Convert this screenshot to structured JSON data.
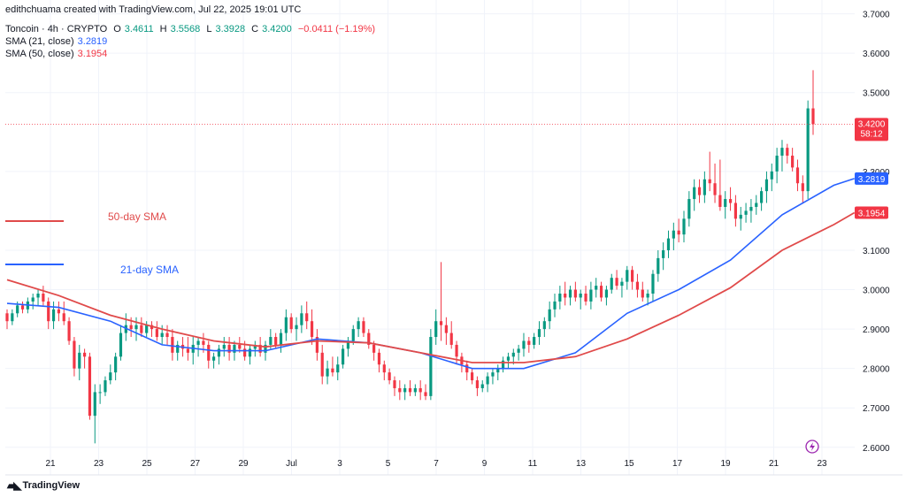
{
  "header": {
    "creator_line": "edithchuama created with TradingView.com, Jul 22, 2025 19:01 UTC",
    "symbol": "Toncoin · 4h · CRYPTO",
    "o_label": "O",
    "o_value": "3.4611",
    "h_label": "H",
    "h_value": "3.5568",
    "l_label": "L",
    "l_value": "3.3928",
    "c_label": "C",
    "c_value": "3.4200",
    "change": "−0.0411 (−1.19%)",
    "sma21_label": "SMA (21, close)",
    "sma21_value": "3.2819",
    "sma50_label": "SMA (50, close)",
    "sma50_value": "3.1954"
  },
  "brand": {
    "name": "TradingView"
  },
  "colors": {
    "up": "#089981",
    "down": "#f23645",
    "sma21": "#2962ff",
    "sma50": "#e04a4a",
    "grid": "#f0f3fa",
    "text": "#131722"
  },
  "chart_data": {
    "type": "candlestick",
    "y_ticks": [
      "3.7000",
      "3.6000",
      "3.5000",
      "3.3000",
      "3.1000",
      "3.0000",
      "2.9000",
      "2.8000",
      "2.7000",
      "2.6000"
    ],
    "ylim": [
      2.53,
      3.735
    ],
    "x_ticks": [
      "21",
      "23",
      "25",
      "27",
      "29",
      "Jul",
      "3",
      "5",
      "7",
      "9",
      "11",
      "13",
      "15",
      "17",
      "19",
      "21",
      "23"
    ],
    "last_price_label": {
      "price": "3.4200",
      "countdown": "58:12"
    },
    "sma21_label": "3.2819",
    "sma50_label": "3.1954",
    "annotations": [
      {
        "text": "50-day SMA",
        "color": "#e04a4a"
      },
      {
        "text": "21-day SMA",
        "color": "#2962ff"
      }
    ],
    "candles": [
      [
        2.94,
        2.95,
        2.9,
        2.92
      ],
      [
        2.92,
        2.95,
        2.91,
        2.94
      ],
      [
        2.94,
        2.97,
        2.93,
        2.96
      ],
      [
        2.96,
        2.97,
        2.94,
        2.95
      ],
      [
        2.95,
        2.98,
        2.94,
        2.97
      ],
      [
        2.97,
        2.99,
        2.95,
        2.98
      ],
      [
        2.98,
        3.0,
        2.96,
        2.99
      ],
      [
        2.99,
        3.01,
        2.96,
        2.97
      ],
      [
        2.97,
        2.98,
        2.9,
        2.92
      ],
      [
        2.92,
        2.97,
        2.9,
        2.95
      ],
      [
        2.95,
        2.97,
        2.92,
        2.94
      ],
      [
        2.94,
        2.97,
        2.91,
        2.92
      ],
      [
        2.92,
        2.93,
        2.86,
        2.87
      ],
      [
        2.87,
        2.88,
        2.78,
        2.8
      ],
      [
        2.8,
        2.86,
        2.77,
        2.84
      ],
      [
        2.84,
        2.85,
        2.8,
        2.83
      ],
      [
        2.83,
        2.84,
        2.67,
        2.68
      ],
      [
        2.68,
        2.76,
        2.61,
        2.74
      ],
      [
        2.74,
        2.76,
        2.71,
        2.74
      ],
      [
        2.74,
        2.78,
        2.73,
        2.77
      ],
      [
        2.77,
        2.81,
        2.76,
        2.79
      ],
      [
        2.79,
        2.84,
        2.77,
        2.83
      ],
      [
        2.83,
        2.91,
        2.82,
        2.89
      ],
      [
        2.89,
        2.94,
        2.87,
        2.91
      ],
      [
        2.91,
        2.93,
        2.88,
        2.9
      ],
      [
        2.9,
        2.93,
        2.87,
        2.91
      ],
      [
        2.91,
        2.93,
        2.88,
        2.89
      ],
      [
        2.89,
        2.92,
        2.88,
        2.91
      ],
      [
        2.91,
        2.92,
        2.88,
        2.9
      ],
      [
        2.9,
        2.92,
        2.87,
        2.88
      ],
      [
        2.88,
        2.91,
        2.86,
        2.89
      ],
      [
        2.89,
        2.91,
        2.86,
        2.88
      ],
      [
        2.88,
        2.9,
        2.82,
        2.84
      ],
      [
        2.84,
        2.87,
        2.82,
        2.86
      ],
      [
        2.86,
        2.88,
        2.83,
        2.85
      ],
      [
        2.85,
        2.88,
        2.82,
        2.84
      ],
      [
        2.84,
        2.88,
        2.81,
        2.86
      ],
      [
        2.86,
        2.88,
        2.83,
        2.87
      ],
      [
        2.87,
        2.89,
        2.84,
        2.86
      ],
      [
        2.86,
        2.87,
        2.8,
        2.82
      ],
      [
        2.82,
        2.84,
        2.8,
        2.83
      ],
      [
        2.83,
        2.86,
        2.81,
        2.85
      ],
      [
        2.85,
        2.88,
        2.83,
        2.86
      ],
      [
        2.86,
        2.88,
        2.82,
        2.84
      ],
      [
        2.84,
        2.87,
        2.82,
        2.86
      ],
      [
        2.86,
        2.88,
        2.84,
        2.85
      ],
      [
        2.85,
        2.87,
        2.82,
        2.83
      ],
      [
        2.83,
        2.86,
        2.81,
        2.85
      ],
      [
        2.85,
        2.87,
        2.83,
        2.86
      ],
      [
        2.86,
        2.88,
        2.83,
        2.84
      ],
      [
        2.84,
        2.87,
        2.82,
        2.86
      ],
      [
        2.86,
        2.9,
        2.85,
        2.88
      ],
      [
        2.88,
        2.89,
        2.85,
        2.86
      ],
      [
        2.86,
        2.9,
        2.84,
        2.89
      ],
      [
        2.89,
        2.95,
        2.87,
        2.93
      ],
      [
        2.93,
        2.94,
        2.89,
        2.9
      ],
      [
        2.9,
        2.93,
        2.87,
        2.91
      ],
      [
        2.91,
        2.96,
        2.89,
        2.94
      ],
      [
        2.94,
        2.97,
        2.9,
        2.92
      ],
      [
        2.92,
        2.95,
        2.86,
        2.88
      ],
      [
        2.88,
        2.9,
        2.82,
        2.84
      ],
      [
        2.84,
        2.86,
        2.76,
        2.78
      ],
      [
        2.78,
        2.82,
        2.76,
        2.8
      ],
      [
        2.8,
        2.83,
        2.78,
        2.79
      ],
      [
        2.79,
        2.83,
        2.77,
        2.81
      ],
      [
        2.81,
        2.86,
        2.8,
        2.85
      ],
      [
        2.85,
        2.88,
        2.83,
        2.87
      ],
      [
        2.87,
        2.91,
        2.86,
        2.9
      ],
      [
        2.9,
        2.93,
        2.88,
        2.92
      ],
      [
        2.92,
        2.93,
        2.88,
        2.89
      ],
      [
        2.89,
        2.9,
        2.85,
        2.86
      ],
      [
        2.86,
        2.87,
        2.82,
        2.84
      ],
      [
        2.84,
        2.85,
        2.79,
        2.81
      ],
      [
        2.81,
        2.82,
        2.77,
        2.79
      ],
      [
        2.79,
        2.8,
        2.76,
        2.77
      ],
      [
        2.77,
        2.78,
        2.73,
        2.75
      ],
      [
        2.75,
        2.77,
        2.72,
        2.74
      ],
      [
        2.74,
        2.76,
        2.72,
        2.75
      ],
      [
        2.75,
        2.77,
        2.73,
        2.74
      ],
      [
        2.74,
        2.76,
        2.73,
        2.75
      ],
      [
        2.75,
        2.77,
        2.72,
        2.74
      ],
      [
        2.74,
        2.76,
        2.72,
        2.73
      ],
      [
        2.73,
        2.9,
        2.72,
        2.88
      ],
      [
        2.88,
        2.95,
        2.86,
        2.92
      ],
      [
        2.92,
        3.07,
        2.87,
        2.91
      ],
      [
        2.91,
        2.93,
        2.86,
        2.89
      ],
      [
        2.89,
        2.92,
        2.85,
        2.86
      ],
      [
        2.86,
        2.87,
        2.81,
        2.83
      ],
      [
        2.83,
        2.84,
        2.79,
        2.81
      ],
      [
        2.81,
        2.82,
        2.77,
        2.79
      ],
      [
        2.79,
        2.8,
        2.76,
        2.77
      ],
      [
        2.77,
        2.78,
        2.73,
        2.75
      ],
      [
        2.75,
        2.77,
        2.74,
        2.76
      ],
      [
        2.76,
        2.79,
        2.74,
        2.78
      ],
      [
        2.78,
        2.8,
        2.76,
        2.79
      ],
      [
        2.79,
        2.81,
        2.77,
        2.8
      ],
      [
        2.8,
        2.83,
        2.79,
        2.82
      ],
      [
        2.82,
        2.84,
        2.8,
        2.83
      ],
      [
        2.83,
        2.85,
        2.81,
        2.84
      ],
      [
        2.84,
        2.86,
        2.82,
        2.85
      ],
      [
        2.85,
        2.89,
        2.83,
        2.87
      ],
      [
        2.87,
        2.88,
        2.84,
        2.86
      ],
      [
        2.86,
        2.89,
        2.85,
        2.88
      ],
      [
        2.88,
        2.92,
        2.86,
        2.9
      ],
      [
        2.9,
        2.93,
        2.88,
        2.92
      ],
      [
        2.92,
        2.97,
        2.9,
        2.95
      ],
      [
        2.95,
        2.99,
        2.93,
        2.97
      ],
      [
        2.97,
        3.01,
        2.95,
        2.99
      ],
      [
        2.99,
        3.02,
        2.96,
        2.98
      ],
      [
        2.98,
        3.01,
        2.96,
        3.0
      ],
      [
        3.0,
        3.02,
        2.97,
        2.98
      ],
      [
        2.98,
        3.0,
        2.95,
        2.99
      ],
      [
        2.99,
        3.01,
        2.96,
        2.97
      ],
      [
        2.97,
        3.02,
        2.95,
        3.0
      ],
      [
        3.0,
        3.03,
        2.98,
        3.01
      ],
      [
        3.01,
        3.02,
        2.97,
        2.98
      ],
      [
        2.98,
        3.01,
        2.96,
        3.0
      ],
      [
        3.0,
        3.04,
        2.99,
        3.03
      ],
      [
        3.03,
        3.05,
        3.0,
        3.01
      ],
      [
        3.01,
        3.03,
        2.98,
        3.02
      ],
      [
        3.02,
        3.06,
        3.0,
        3.05
      ],
      [
        3.05,
        3.06,
        3.0,
        3.02
      ],
      [
        3.02,
        3.04,
        2.98,
        3.0
      ],
      [
        3.0,
        3.02,
        2.97,
        2.98
      ],
      [
        2.98,
        3.0,
        2.96,
        2.99
      ],
      [
        2.99,
        3.05,
        2.97,
        3.04
      ],
      [
        3.04,
        3.1,
        3.02,
        3.08
      ],
      [
        3.08,
        3.12,
        3.05,
        3.1
      ],
      [
        3.1,
        3.15,
        3.08,
        3.13
      ],
      [
        3.13,
        3.17,
        3.1,
        3.15
      ],
      [
        3.15,
        3.18,
        3.12,
        3.14
      ],
      [
        3.14,
        3.2,
        3.12,
        3.18
      ],
      [
        3.18,
        3.25,
        3.16,
        3.23
      ],
      [
        3.23,
        3.28,
        3.2,
        3.26
      ],
      [
        3.26,
        3.28,
        3.22,
        3.24
      ],
      [
        3.24,
        3.3,
        3.22,
        3.28
      ],
      [
        3.28,
        3.35,
        3.25,
        3.27
      ],
      [
        3.27,
        3.32,
        3.22,
        3.24
      ],
      [
        3.24,
        3.33,
        3.2,
        3.21
      ],
      [
        3.21,
        3.25,
        3.18,
        3.23
      ],
      [
        3.23,
        3.26,
        3.2,
        3.22
      ],
      [
        3.22,
        3.24,
        3.16,
        3.18
      ],
      [
        3.18,
        3.21,
        3.15,
        3.19
      ],
      [
        3.19,
        3.22,
        3.17,
        3.2
      ],
      [
        3.2,
        3.23,
        3.17,
        3.21
      ],
      [
        3.21,
        3.24,
        3.19,
        3.22
      ],
      [
        3.22,
        3.26,
        3.2,
        3.25
      ],
      [
        3.25,
        3.3,
        3.22,
        3.28
      ],
      [
        3.28,
        3.32,
        3.25,
        3.3
      ],
      [
        3.3,
        3.36,
        3.27,
        3.34
      ],
      [
        3.34,
        3.38,
        3.3,
        3.36
      ],
      [
        3.36,
        3.37,
        3.32,
        3.34
      ],
      [
        3.34,
        3.36,
        3.3,
        3.31
      ],
      [
        3.31,
        3.33,
        3.25,
        3.27
      ],
      [
        3.27,
        3.29,
        3.22,
        3.25
      ],
      [
        3.25,
        3.48,
        3.23,
        3.46
      ],
      [
        3.46,
        3.5568,
        3.3928,
        3.42
      ]
    ],
    "sma21": [
      [
        0,
        2.965
      ],
      [
        10,
        2.955
      ],
      [
        20,
        2.92
      ],
      [
        30,
        2.86
      ],
      [
        40,
        2.845
      ],
      [
        50,
        2.845
      ],
      [
        60,
        2.875
      ],
      [
        70,
        2.865
      ],
      [
        80,
        2.84
      ],
      [
        90,
        2.8
      ],
      [
        100,
        2.8
      ],
      [
        110,
        2.84
      ],
      [
        120,
        2.94
      ],
      [
        130,
        3.0
      ],
      [
        140,
        3.075
      ],
      [
        150,
        3.19
      ],
      [
        160,
        3.265
      ],
      [
        164,
        3.2819
      ]
    ],
    "sma50": [
      [
        0,
        3.025
      ],
      [
        10,
        2.985
      ],
      [
        20,
        2.935
      ],
      [
        30,
        2.9
      ],
      [
        40,
        2.87
      ],
      [
        50,
        2.855
      ],
      [
        60,
        2.87
      ],
      [
        70,
        2.865
      ],
      [
        80,
        2.84
      ],
      [
        90,
        2.815
      ],
      [
        100,
        2.815
      ],
      [
        110,
        2.83
      ],
      [
        120,
        2.875
      ],
      [
        130,
        2.935
      ],
      [
        140,
        3.005
      ],
      [
        150,
        3.1
      ],
      [
        160,
        3.165
      ],
      [
        164,
        3.1954
      ]
    ]
  }
}
